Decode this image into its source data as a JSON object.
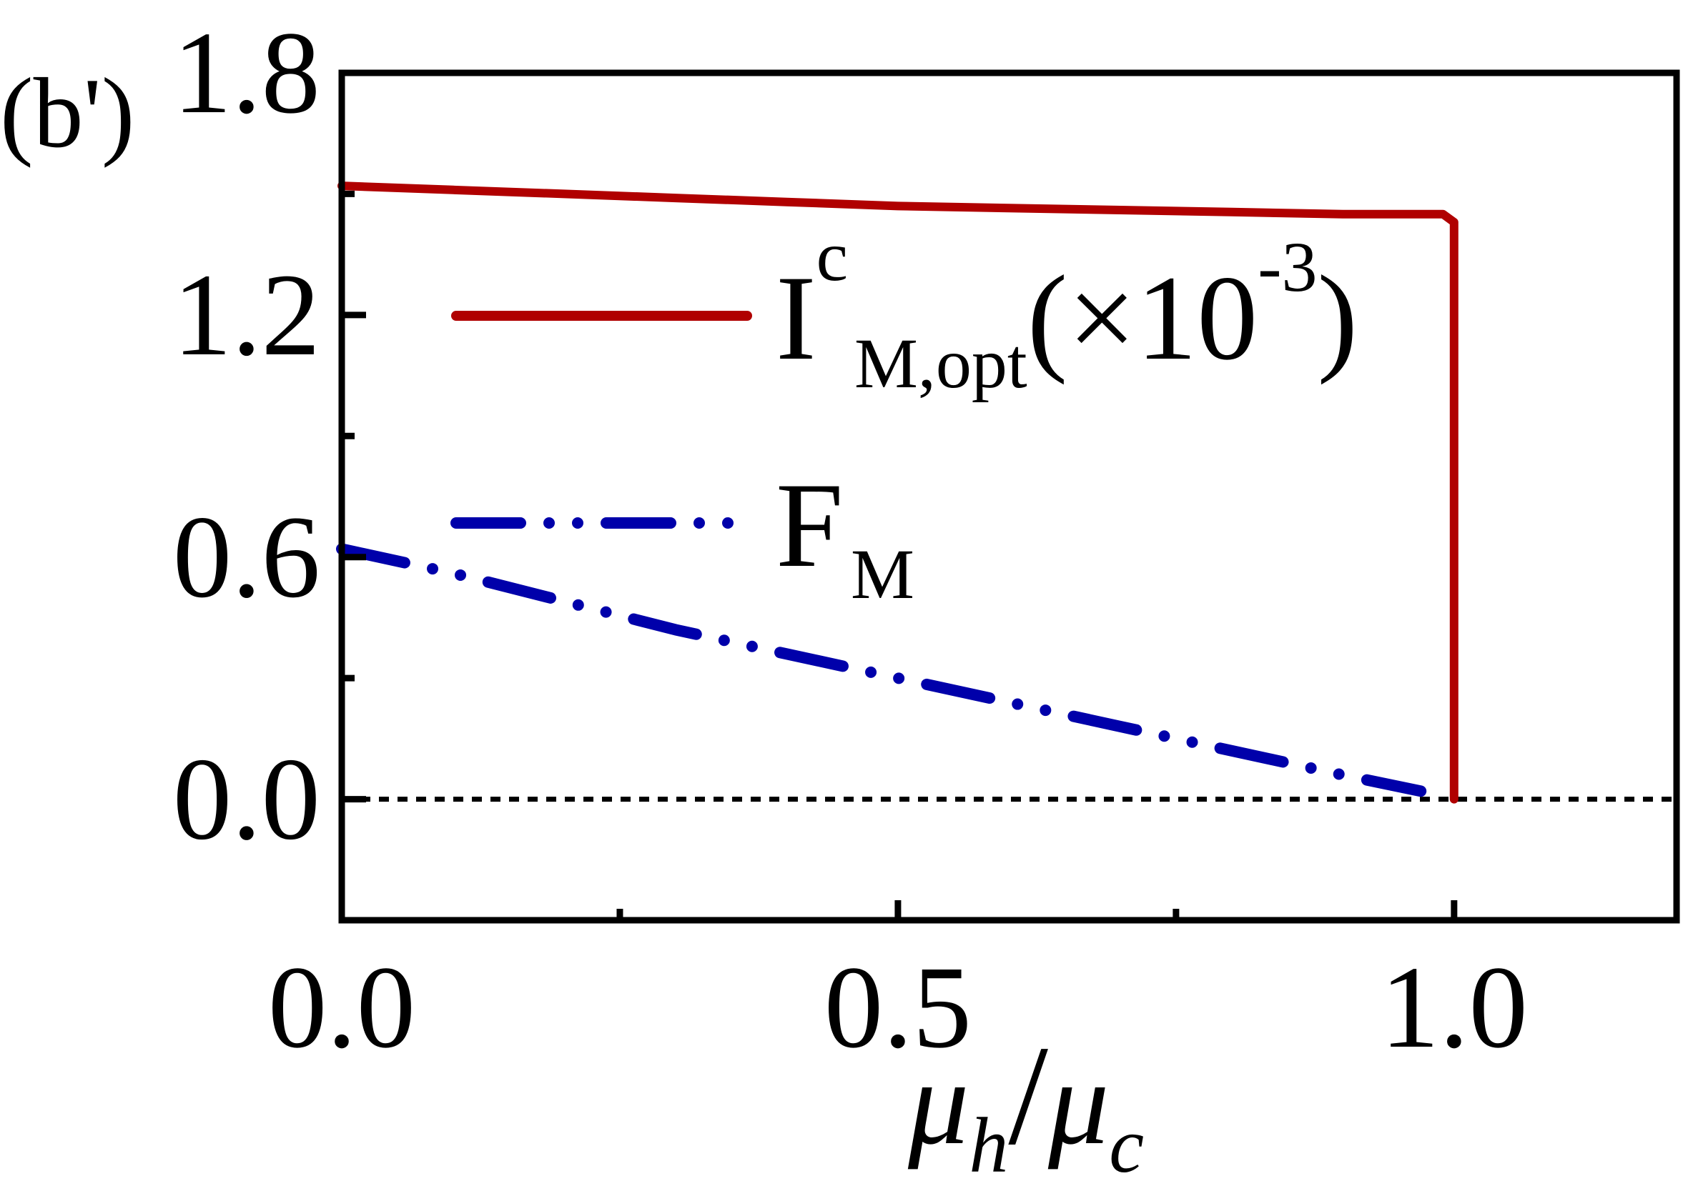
{
  "panel_label": "(b')",
  "chart_data": {
    "type": "line",
    "xlabel": {
      "main_1": "μ",
      "sub_1": "h",
      "slash": "/",
      "main_2": "μ",
      "sub_2": "c"
    },
    "xlim": [
      0.0,
      1.2
    ],
    "ylim": [
      -0.3,
      1.8
    ],
    "xticks": [
      0.0,
      0.5,
      1.0
    ],
    "xtick_labels": [
      "0.0",
      "0.5",
      "1.0"
    ],
    "xminor": [
      0.25,
      0.75
    ],
    "yticks": [
      0.0,
      0.6,
      1.2,
      1.8
    ],
    "ytick_labels": [
      "0.0",
      "0.6",
      "1.2",
      "1.8"
    ],
    "yminor": [
      0.3,
      0.9,
      1.5
    ],
    "grid": false,
    "legend_position": "center-left",
    "series": [
      {
        "legend": {
          "main": "I",
          "sup": "c",
          "sub": "M,opt",
          "suffix_open": "(×10",
          "suffix_sup": "-3",
          "suffix_close": ")"
        },
        "color": "#b00000",
        "style": "solid",
        "x": [
          0.0,
          0.1,
          0.2,
          0.3,
          0.4,
          0.5,
          0.6,
          0.7,
          0.8,
          0.9,
          0.99,
          1.0,
          1.0,
          1.0
        ],
        "y": [
          1.52,
          1.51,
          1.5,
          1.49,
          1.48,
          1.47,
          1.465,
          1.46,
          1.455,
          1.45,
          1.45,
          1.43,
          1.3,
          0.0
        ]
      },
      {
        "legend": {
          "main": "F",
          "sub": "M"
        },
        "color": "#0000aa",
        "style": "dash-dot-dot",
        "x": [
          0.0,
          0.1,
          0.2,
          0.3,
          0.4,
          0.5,
          0.6,
          0.7,
          0.8,
          0.9,
          0.97
        ],
        "y": [
          0.62,
          0.56,
          0.49,
          0.42,
          0.36,
          0.3,
          0.24,
          0.18,
          0.12,
          0.06,
          0.02
        ]
      },
      {
        "color": "#000000",
        "style": "dotted",
        "x": [
          0.0,
          1.2
        ],
        "y": [
          0.0,
          0.0
        ]
      }
    ]
  }
}
